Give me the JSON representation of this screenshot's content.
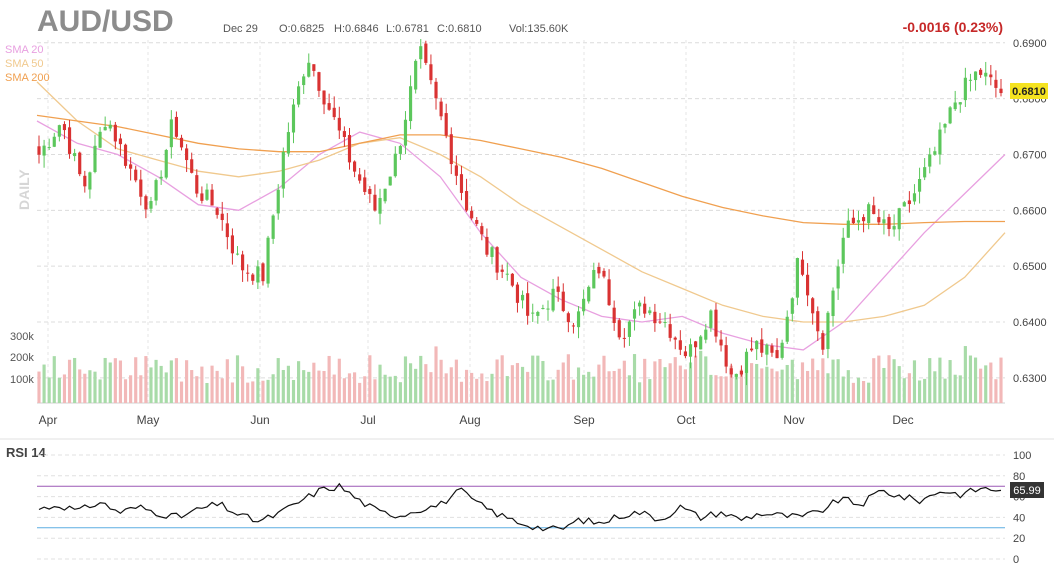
{
  "header": {
    "symbol": "AUD/USD",
    "date": "Dec 29",
    "open": "O:0.6825",
    "high": "H:0.6846",
    "low": "L:0.6781",
    "close": "C:0.6810",
    "volume": "Vol:135.60K",
    "change": "-0.0016 (0.23%)",
    "change_color": "#c62828"
  },
  "legend": [
    {
      "label": "SMA 20",
      "color": "#e8a0e0"
    },
    {
      "label": "SMA 50",
      "color": "#f0c98e"
    },
    {
      "label": "SMA 200",
      "color": "#f0a050"
    }
  ],
  "watermark": "DAILY",
  "last_price_label": "0.6810",
  "rsi_title": "RSI 14",
  "rsi_value_label": "65.99",
  "chart_data": [
    {
      "type": "candlestick",
      "title": "AUD/USD",
      "timeframe": "Daily",
      "x_tick_labels": [
        "Apr",
        "May",
        "Jun",
        "Jul",
        "Aug",
        "Sep",
        "Oct",
        "Nov",
        "Dec"
      ],
      "y_tick_labels": [
        "0.6900",
        "0.6800",
        "0.6700",
        "0.6600",
        "0.6500",
        "0.6400",
        "0.6300"
      ],
      "ylim": [
        0.6255,
        0.6905
      ],
      "volume_tick_labels": [
        "300k",
        "200k",
        "100k"
      ],
      "grid": true,
      "colors": {
        "up": "#5cc75c",
        "down": "#d93232",
        "up_volume": "#a8dba8",
        "down_volume": "#f2b8b8"
      },
      "anchors": [
        {
          "month": "Apr",
          "close": 0.67
        },
        {
          "month": "Apr",
          "close": 0.676
        },
        {
          "month": "Apr",
          "close": 0.664
        },
        {
          "month": "Apr",
          "close": 0.677
        },
        {
          "month": "May",
          "close": 0.668
        },
        {
          "month": "May",
          "close": 0.66
        },
        {
          "month": "May",
          "close": 0.676
        },
        {
          "month": "May",
          "close": 0.664
        },
        {
          "month": "May",
          "close": 0.66
        },
        {
          "month": "Jun",
          "close": 0.65
        },
        {
          "month": "Jun",
          "close": 0.648
        },
        {
          "month": "Jun",
          "close": 0.672
        },
        {
          "month": "Jun",
          "close": 0.688
        },
        {
          "month": "Jun",
          "close": 0.678
        },
        {
          "month": "Jul",
          "close": 0.668
        },
        {
          "month": "Jul",
          "close": 0.66
        },
        {
          "month": "Jul",
          "close": 0.67
        },
        {
          "month": "Jul",
          "close": 0.6885
        },
        {
          "month": "Jul",
          "close": 0.676
        },
        {
          "month": "Aug",
          "close": 0.662
        },
        {
          "month": "Aug",
          "close": 0.653
        },
        {
          "month": "Aug",
          "close": 0.648
        },
        {
          "month": "Aug",
          "close": 0.64
        },
        {
          "month": "Sep",
          "close": 0.645
        },
        {
          "month": "Sep",
          "close": 0.64
        },
        {
          "month": "Sep",
          "close": 0.65
        },
        {
          "month": "Sep",
          "close": 0.638
        },
        {
          "month": "Sep",
          "close": 0.643
        },
        {
          "month": "Oct",
          "close": 0.64
        },
        {
          "month": "Oct",
          "close": 0.634
        },
        {
          "month": "Oct",
          "close": 0.642
        },
        {
          "month": "Oct",
          "close": 0.63
        },
        {
          "month": "Oct",
          "close": 0.636
        },
        {
          "month": "Nov",
          "close": 0.633
        },
        {
          "month": "Nov",
          "close": 0.652
        },
        {
          "month": "Nov",
          "close": 0.636
        },
        {
          "month": "Nov",
          "close": 0.656
        },
        {
          "month": "Nov",
          "close": 0.66
        },
        {
          "month": "Dec",
          "close": 0.656
        },
        {
          "month": "Dec",
          "close": 0.662
        },
        {
          "month": "Dec",
          "close": 0.67
        },
        {
          "month": "Dec",
          "close": 0.68
        },
        {
          "month": "Dec",
          "close": 0.685
        },
        {
          "month": "Dec",
          "close": 0.681
        }
      ],
      "series": [
        {
          "name": "SMA 20",
          "color": "#e8a0e0",
          "values": [
            0.676,
            0.672,
            0.67,
            0.666,
            0.661,
            0.66,
            0.664,
            0.67,
            0.674,
            0.672,
            0.666,
            0.656,
            0.648,
            0.644,
            0.641,
            0.64,
            0.641,
            0.638,
            0.636,
            0.635,
            0.64,
            0.648,
            0.656,
            0.663,
            0.67
          ]
        },
        {
          "name": "SMA 50",
          "color": "#f0c98e",
          "values": [
            0.683,
            0.676,
            0.671,
            0.669,
            0.667,
            0.666,
            0.667,
            0.669,
            0.672,
            0.673,
            0.67,
            0.666,
            0.661,
            0.657,
            0.653,
            0.649,
            0.646,
            0.643,
            0.641,
            0.64,
            0.64,
            0.641,
            0.643,
            0.648,
            0.656
          ]
        },
        {
          "name": "SMA 200",
          "color": "#f0a050",
          "values": [
            0.677,
            0.676,
            0.675,
            0.6735,
            0.672,
            0.671,
            0.6705,
            0.6705,
            0.672,
            0.6735,
            0.6735,
            0.6725,
            0.671,
            0.6695,
            0.6675,
            0.665,
            0.6625,
            0.6605,
            0.659,
            0.6578,
            0.6575,
            0.6575,
            0.6578,
            0.658,
            0.658
          ]
        }
      ]
    },
    {
      "type": "line",
      "title": "RSI 14",
      "ylim": [
        0,
        100
      ],
      "y_tick_labels": [
        "100",
        "80",
        "60",
        "40",
        "20",
        "0"
      ],
      "levels": [
        70,
        30
      ],
      "level_colors": [
        "#9b59b6",
        "#5dade2"
      ],
      "last_value": 65.99,
      "anchors": [
        48,
        52,
        46,
        55,
        45,
        50,
        44,
        40,
        48,
        53,
        42,
        36,
        44,
        55,
        66,
        70,
        56,
        45,
        42,
        48,
        52,
        66,
        52,
        42,
        35,
        30,
        28,
        38,
        34,
        42,
        45,
        38,
        50,
        40,
        45,
        38,
        44,
        42,
        40,
        46,
        58,
        52,
        66,
        60,
        56,
        66,
        62,
        68,
        66
      ]
    }
  ]
}
